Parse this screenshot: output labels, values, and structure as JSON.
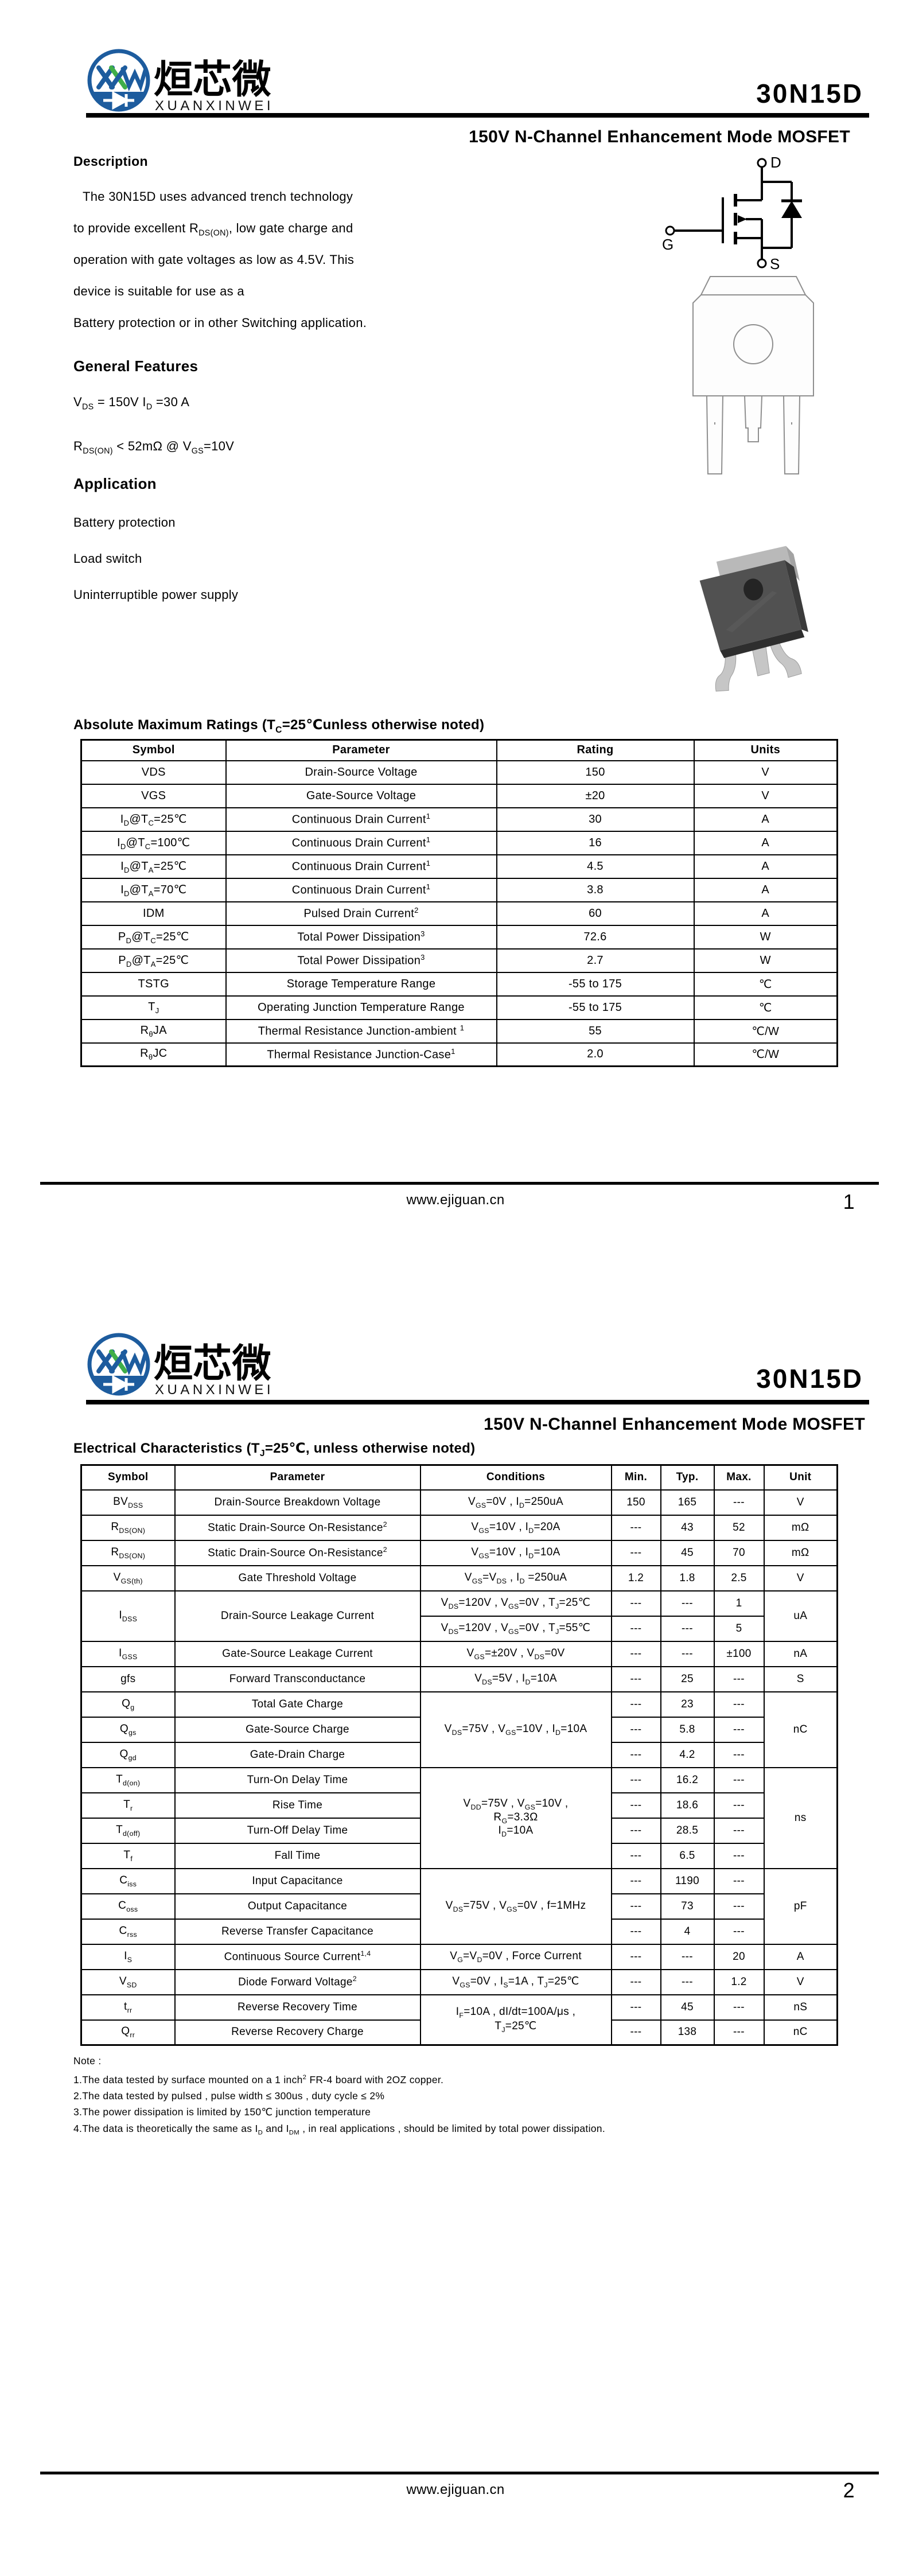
{
  "brand": {
    "monogram": "XXW",
    "company_cn": "烜芯微",
    "company_en": "XUANXINWEI",
    "blue": "#1d5c9e",
    "green": "#3fae49"
  },
  "part_number": "30N15D",
  "subtitle": "150V N-Channel Enhancement Mode MOSFET",
  "footer": {
    "website": "www.ejiguan.cn",
    "page1": "1",
    "page2": "2"
  },
  "page1": {
    "description_title": "Description",
    "description_lines": [
      "The 30N15D uses advanced trench technology",
      "to provide excellent R_{DS(ON)}, low gate charge and",
      "operation with gate voltages as low as 4.5V. This",
      "device is suitable for use as a",
      "Battery protection or in other Switching application."
    ],
    "features_title": "General Features",
    "features": [
      "V_{DS} = 150V  I_{D} =30 A",
      "R_{DS(ON)} < 52mΩ @ V_{GS}=10V"
    ],
    "application_title": "Application",
    "applications": [
      "Battery protection",
      "Load switch",
      "Uninterruptible power supply"
    ],
    "symbol_labels": {
      "d": "D",
      "g": "G",
      "s": "S"
    },
    "abs_max": {
      "title": "Absolute Maximum Ratings (T_{C}=25℃unless otherwise noted)",
      "headers": [
        "Symbol",
        "Parameter",
        "Rating",
        "Units"
      ],
      "rows": [
        [
          "VDS",
          "Drain-Source Voltage",
          "150",
          "V"
        ],
        [
          "VGS",
          "Gate-Source Voltage",
          "±20",
          "V"
        ],
        [
          "I_{D}@T_{C}=25℃",
          "Continuous Drain Current^{1}",
          "30",
          "A"
        ],
        [
          "I_{D}@T_{C}=100℃",
          "Continuous Drain Current^{1}",
          "16",
          "A"
        ],
        [
          "I_{D}@T_{A}=25℃",
          "Continuous Drain Current^{1}",
          "4.5",
          "A"
        ],
        [
          "I_{D}@T_{A}=70℃",
          "Continuous Drain Current^{1}",
          "3.8",
          "A"
        ],
        [
          "IDM",
          "Pulsed Drain Current^{2}",
          "60",
          "A"
        ],
        [
          "P_{D}@T_{C}=25℃",
          "Total Power Dissipation^{3}",
          "72.6",
          "W"
        ],
        [
          "P_{D}@T_{A}=25℃",
          "Total Power Dissipation^{3}",
          "2.7",
          "W"
        ],
        [
          "TSTG",
          "Storage Temperature Range",
          "-55 to 175",
          "℃"
        ],
        [
          "T_{J}",
          "Operating Junction Temperature Range",
          "-55 to 175",
          "℃"
        ],
        [
          "R_{θ}JA",
          "Thermal Resistance Junction-ambient ^{1}",
          "55",
          "℃/W"
        ],
        [
          "R_{θ}JC",
          "Thermal Resistance Junction-Case^{1}",
          "2.0",
          "℃/W"
        ]
      ]
    }
  },
  "page2": {
    "ec_title": "Electrical Characteristics (T_{J}=25℃, unless otherwise noted)",
    "table": {
      "headers": [
        "Symbol",
        "Parameter",
        "Conditions",
        "Min.",
        "Typ.",
        "Max.",
        "Unit"
      ],
      "rows": [
        {
          "sym": "BV_{DSS}",
          "par": "Drain-Source Breakdown Voltage",
          "cond": "V_{GS}=0V , I_{D}=250uA",
          "min": "150",
          "typ": "165",
          "max": "---",
          "unit": "V"
        },
        {
          "sym": "R_{DS(ON)}",
          "par": "Static Drain-Source On-Resistance^{2}",
          "cond": "V_{GS}=10V , I_{D}=20A",
          "min": "---",
          "typ": "43",
          "max": "52",
          "unit": "mΩ"
        },
        {
          "sym": "R_{DS(ON)}",
          "par": "Static Drain-Source On-Resistance^{2}",
          "cond": "V_{GS}=10V , I_{D}=10A",
          "min": "---",
          "typ": "45",
          "max": "70",
          "unit": "mΩ"
        },
        {
          "sym": "V_{GS(th)}",
          "par": "Gate Threshold Voltage",
          "cond": "V_{GS}=V_{DS} , I_{D} =250uA",
          "min": "1.2",
          "typ": "1.8",
          "max": "2.5",
          "unit": "V"
        },
        {
          "sym": "I_{DSS}",
          "par": "Drain-Source Leakage Current",
          "cond": "V_{DS}=120V , V_{GS}=0V , T_{J}=25℃",
          "min": "---",
          "typ": "---",
          "max": "1",
          "unit": "uA"
        },
        {
          "cond": "V_{DS}=120V , V_{GS}=0V , T_{J}=55℃",
          "min": "---",
          "typ": "---",
          "max": "5"
        },
        {
          "sym": "I_{GSS}",
          "par": "Gate-Source Leakage Current",
          "cond": "V_{GS}=±20V , V_{DS}=0V",
          "min": "---",
          "typ": "---",
          "max": "±100",
          "unit": "nA"
        },
        {
          "sym": "gfs",
          "par": "Forward Transconductance",
          "cond": "V_{DS}=5V , I_{D}=10A",
          "min": "---",
          "typ": "25",
          "max": "---",
          "unit": "S"
        },
        {
          "sym": "Q_{g}",
          "par": "Total Gate Charge",
          "cond": "V_{DS}=75V , V_{GS}=10V , I_{D}=10A",
          "min": "---",
          "typ": "23",
          "max": "---",
          "unit": "nC"
        },
        {
          "sym": "Q_{gs}",
          "par": "Gate-Source Charge",
          "min": "---",
          "typ": "5.8",
          "max": "---"
        },
        {
          "sym": "Q_{gd}",
          "par": "Gate-Drain Charge",
          "min": "---",
          "typ": "4.2",
          "max": "---"
        },
        {
          "sym": "T_{d(on)}",
          "par": "Turn-On Delay Time",
          "cond1": "V_{DD}=75V , V_{GS}=10V ,",
          "cond2": "R_{G}=3.3Ω",
          "cond3": "I_{D}=10A",
          "min": "---",
          "typ": "16.2",
          "max": "---",
          "unit": "ns"
        },
        {
          "sym": "T_{r}",
          "par": "Rise Time",
          "min": "---",
          "typ": "18.6",
          "max": "---"
        },
        {
          "sym": "T_{d(off)}",
          "par": "Turn-Off Delay Time",
          "min": "---",
          "typ": "28.5",
          "max": "---"
        },
        {
          "sym": "T_{f}",
          "par": "Fall Time",
          "min": "---",
          "typ": "6.5",
          "max": "---"
        },
        {
          "sym": "C_{iss}",
          "par": "Input Capacitance",
          "cond": "V_{DS}=75V , V_{GS}=0V , f=1MHz",
          "min": "---",
          "typ": "1190",
          "max": "---",
          "unit": "pF"
        },
        {
          "sym": "C_{oss}",
          "par": "Output Capacitance",
          "min": "---",
          "typ": "73",
          "max": "---"
        },
        {
          "sym": "C_{rss}",
          "par": "Reverse Transfer Capacitance",
          "min": "---",
          "typ": "4",
          "max": "---"
        },
        {
          "sym": "I_{S}",
          "par": "Continuous Source Current^{1,4}",
          "cond": "V_{G}=V_{D}=0V , Force Current",
          "min": "---",
          "typ": "---",
          "max": "20",
          "unit": "A"
        },
        {
          "sym": "V_{SD}",
          "par": "Diode Forward Voltage^{2}",
          "cond": "V_{GS}=0V , I_{S}=1A , T_{J}=25℃",
          "min": "---",
          "typ": "---",
          "max": "1.2",
          "unit": "V"
        },
        {
          "sym": "t_{rr}",
          "par": "Reverse Recovery Time",
          "cond1": "I_{F}=10A , dI/dt=100A/μs ,",
          "cond2": "T_{J}=25℃",
          "min": "---",
          "typ": "45",
          "max": "---",
          "unit": "nS"
        },
        {
          "sym": "Q_{rr}",
          "par": "Reverse Recovery Charge",
          "min": "---",
          "typ": "138",
          "max": "---",
          "unit": "nC"
        }
      ]
    },
    "notes": {
      "title": "Note :",
      "items": [
        "1.The data tested by surface mounted on a 1 inch^{2} FR-4 board with 2OZ copper.",
        "2.The data tested by pulsed , pulse width ≤ 300us , duty cycle ≤ 2%",
        "3.The power dissipation is limited by 150℃  junction temperature",
        "4.The data is theoretically the same as I_{D} and I_{DM} , in real applications , should be limited by total power dissipation."
      ]
    }
  }
}
